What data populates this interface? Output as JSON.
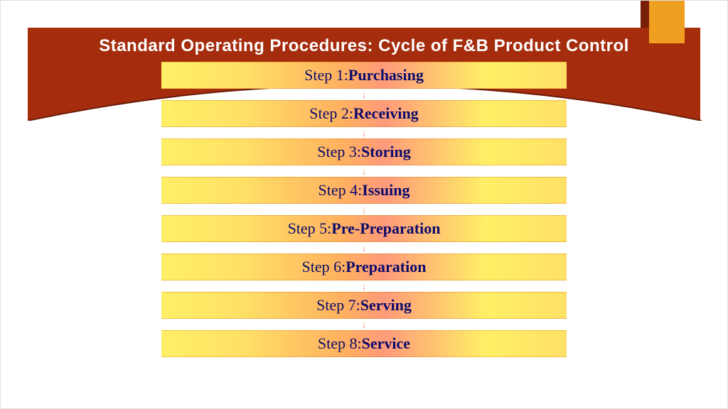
{
  "title": "Standard Operating Procedures: Cycle of F&B Product Control",
  "title_color": "#ffffff",
  "title_fontsize": 24,
  "banner_color": "#a52d0e",
  "ribbon_color": "#f0a020",
  "background_color": "#ffffff",
  "gradient_stops": [
    "#ffef66",
    "#ffe066",
    "#ffb060",
    "#ff9a7a",
    "#ffef66",
    "#ffe066"
  ],
  "step_text_color": "#0b0b6b",
  "step_fontsize": 22,
  "arrow_color": "#f59a8a",
  "steps": [
    {
      "label": "Step 1: ",
      "name": "Purchasing"
    },
    {
      "label": "Step 2: ",
      "name": "Receiving"
    },
    {
      "label": "Step 3: ",
      "name": "Storing"
    },
    {
      "label": "Step 4: ",
      "name": "Issuing"
    },
    {
      "label": "Step 5: ",
      "name": "Pre-Preparation"
    },
    {
      "label": "Step 6: ",
      "name": "Preparation"
    },
    {
      "label": "Step 7: ",
      "name": "Serving"
    },
    {
      "label": "Step 8: ",
      "name": "Service"
    }
  ]
}
